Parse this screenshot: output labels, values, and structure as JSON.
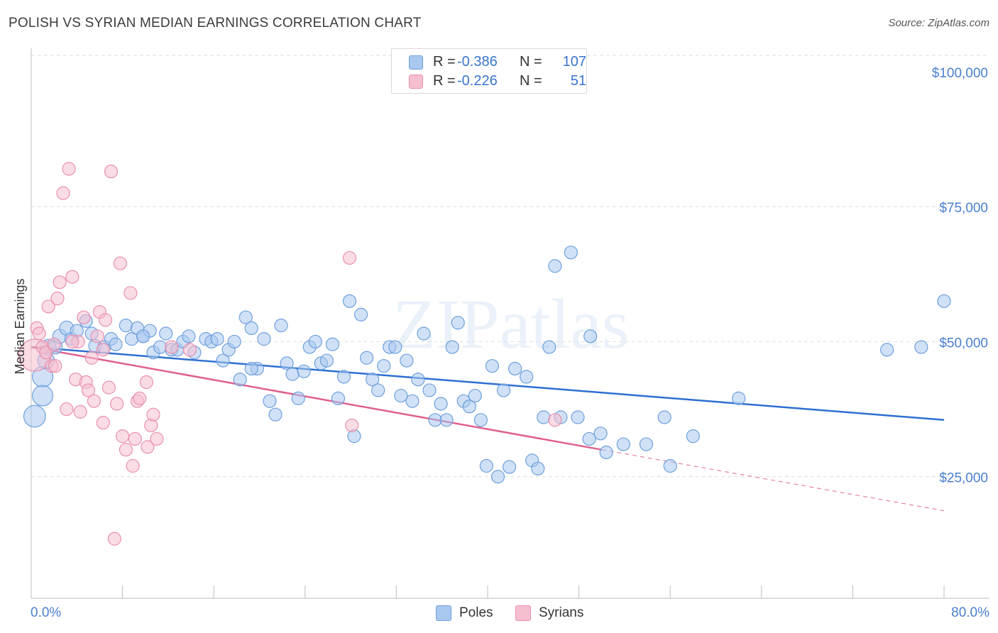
{
  "title": "POLISH VS SYRIAN MEDIAN EARNINGS CORRELATION CHART",
  "source": "Source: ZipAtlas.com",
  "legend": {
    "rows": [
      {
        "r_label": "R =",
        "r_value": "-0.386",
        "n_label": "N =",
        "n_value": "107"
      },
      {
        "r_label": "R =",
        "r_value": "-0.226",
        "n_label": "N =",
        "n_value": "51"
      }
    ]
  },
  "colors": {
    "poles_fill": "#a9c8f0",
    "poles_stroke": "#6e9fdc",
    "poles_line": "#2e6fd1",
    "syrians_fill": "#f6bfd0",
    "syrians_stroke": "#e98fae",
    "syrians_line": "#e0608e",
    "grid": "#dedede",
    "tick_label": "#4a7fcf"
  },
  "chart_data": {
    "type": "scatter",
    "title": "POLISH VS SYRIAN MEDIAN EARNINGS CORRELATION CHART",
    "xlabel": "",
    "ylabel": "Median Earnings",
    "x_tick_labels": [
      "0.0%",
      "80.0%"
    ],
    "y_tick_labels": [
      "$25,000",
      "$50,000",
      "$75,000",
      "$100,000"
    ],
    "y_ticks": [
      25000,
      50000,
      75000,
      100000
    ],
    "xlim": [
      0,
      80
    ],
    "ylim": [
      2500,
      103000
    ],
    "watermark": "ZIPatlas",
    "series": [
      {
        "name": "Poles",
        "r": -0.386,
        "n": 107,
        "trend": {
          "x0": 0,
          "y0": 49000,
          "x1": 80,
          "y1": 35500
        },
        "points": [
          [
            0.3,
            36200,
            1.7
          ],
          [
            1.0,
            43500,
            1.6
          ],
          [
            1.0,
            40000,
            1.6
          ],
          [
            1.3,
            46500,
            1.3
          ],
          [
            1.5,
            49000,
            1.2
          ],
          [
            2.1,
            49000,
            1.1
          ],
          [
            2.5,
            51000,
            1.1
          ],
          [
            3.1,
            52500,
            1.1
          ],
          [
            3.5,
            50500,
            1.0
          ],
          [
            4.0,
            52000,
            1.0
          ],
          [
            4.8,
            53800,
            1.0
          ],
          [
            5.3,
            51500,
            1.0
          ],
          [
            5.6,
            49200,
            1.0
          ],
          [
            6.4,
            49000,
            1.0
          ],
          [
            7.0,
            50500,
            1.0
          ],
          [
            7.4,
            49500,
            1.0
          ],
          [
            8.3,
            53000,
            1.0
          ],
          [
            8.8,
            50500,
            1.0
          ],
          [
            9.3,
            52500,
            1.0
          ],
          [
            9.8,
            51000,
            1.0
          ],
          [
            10.4,
            52000,
            1.0
          ],
          [
            10.7,
            48000,
            1.0
          ],
          [
            11.3,
            49000,
            1.0
          ],
          [
            11.8,
            51500,
            1.0
          ],
          [
            12.3,
            48500,
            1.0
          ],
          [
            12.8,
            48500,
            1.0
          ],
          [
            13.3,
            50000,
            1.0
          ],
          [
            13.8,
            51000,
            1.0
          ],
          [
            14.3,
            48000,
            1.0
          ],
          [
            15.3,
            50500,
            1.0
          ],
          [
            15.8,
            50000,
            1.0
          ],
          [
            16.3,
            50500,
            1.0
          ],
          [
            16.8,
            46500,
            1.0
          ],
          [
            17.3,
            48500,
            1.0
          ],
          [
            17.8,
            50000,
            1.0
          ],
          [
            18.3,
            43000,
            1.0
          ],
          [
            18.8,
            54500,
            1.0
          ],
          [
            19.3,
            52500,
            1.0
          ],
          [
            19.8,
            45000,
            1.0
          ],
          [
            20.4,
            50500,
            1.0
          ],
          [
            20.9,
            39000,
            1.0
          ],
          [
            21.4,
            36500,
            1.0
          ],
          [
            21.9,
            53000,
            1.0
          ],
          [
            22.4,
            46000,
            1.0
          ],
          [
            22.9,
            44000,
            1.0
          ],
          [
            23.4,
            39500,
            1.0
          ],
          [
            23.9,
            44500,
            1.0
          ],
          [
            24.4,
            49000,
            1.0
          ],
          [
            24.9,
            50000,
            1.0
          ],
          [
            25.4,
            46000,
            1.0
          ],
          [
            25.9,
            46500,
            1.0
          ],
          [
            26.4,
            49500,
            1.0
          ],
          [
            26.9,
            39500,
            1.0
          ],
          [
            27.4,
            43500,
            1.0
          ],
          [
            27.9,
            57500,
            1.0
          ],
          [
            28.3,
            32500,
            1.0
          ],
          [
            28.9,
            55000,
            1.0
          ],
          [
            29.4,
            47000,
            1.0
          ],
          [
            29.9,
            43000,
            1.0
          ],
          [
            30.4,
            41000,
            1.0
          ],
          [
            30.9,
            45500,
            1.0
          ],
          [
            31.4,
            49000,
            1.0
          ],
          [
            31.9,
            49000,
            1.0
          ],
          [
            32.4,
            40000,
            1.0
          ],
          [
            32.9,
            46500,
            1.0
          ],
          [
            33.4,
            39000,
            1.0
          ],
          [
            33.9,
            43000,
            1.0
          ],
          [
            34.4,
            51500,
            1.0
          ],
          [
            34.9,
            41000,
            1.0
          ],
          [
            35.4,
            35500,
            1.0
          ],
          [
            35.9,
            38500,
            1.0
          ],
          [
            36.4,
            35500,
            1.0
          ],
          [
            36.9,
            49000,
            1.0
          ],
          [
            37.4,
            53500,
            1.0
          ],
          [
            37.9,
            39000,
            1.0
          ],
          [
            38.4,
            38000,
            1.0
          ],
          [
            38.9,
            40000,
            1.0
          ],
          [
            39.4,
            35500,
            1.0
          ],
          [
            39.9,
            27000,
            1.0
          ],
          [
            40.4,
            45500,
            1.0
          ],
          [
            40.9,
            25000,
            1.0
          ],
          [
            41.4,
            41000,
            1.0
          ],
          [
            41.9,
            26800,
            1.0
          ],
          [
            42.4,
            45000,
            1.0
          ],
          [
            43.4,
            43500,
            1.0
          ],
          [
            43.9,
            28000,
            1.0
          ],
          [
            44.4,
            26500,
            1.0
          ],
          [
            44.9,
            36000,
            1.0
          ],
          [
            45.4,
            49000,
            1.0
          ],
          [
            45.9,
            64000,
            1.0
          ],
          [
            46.4,
            36000,
            1.0
          ],
          [
            47.3,
            66500,
            1.0
          ],
          [
            47.9,
            36000,
            1.0
          ],
          [
            48.9,
            32000,
            1.0
          ],
          [
            49.0,
            51000,
            1.0
          ],
          [
            49.9,
            33000,
            1.0
          ],
          [
            50.4,
            29500,
            1.0
          ],
          [
            51.9,
            31000,
            1.0
          ],
          [
            53.9,
            31000,
            1.0
          ],
          [
            55.5,
            36000,
            1.0
          ],
          [
            56.0,
            27000,
            1.0
          ],
          [
            58.0,
            32500,
            1.0
          ],
          [
            62.0,
            39500,
            1.0
          ],
          [
            75.0,
            48500,
            1.0
          ],
          [
            78.0,
            49000,
            1.0
          ],
          [
            80.0,
            57500,
            1.0
          ],
          [
            9.8,
            51000,
            1.0
          ],
          [
            19.3,
            45000,
            1.0
          ]
        ]
      },
      {
        "name": "Syrians",
        "r": -0.226,
        "n": 51,
        "trend": {
          "x0": 0,
          "y0": 49000,
          "x1": 50,
          "y1": 30000,
          "dash_to_x": 80,
          "dash_to_y": 18700
        },
        "points": [
          [
            0.3,
            47500,
            2.5
          ],
          [
            0.5,
            52500,
            1.0
          ],
          [
            0.7,
            51500,
            1.0
          ],
          [
            1.0,
            49000,
            1.0
          ],
          [
            1.3,
            48000,
            1.0
          ],
          [
            1.5,
            56500,
            1.0
          ],
          [
            1.8,
            45500,
            1.0
          ],
          [
            2.0,
            49500,
            1.0
          ],
          [
            2.3,
            58000,
            1.0
          ],
          [
            2.5,
            61000,
            1.0
          ],
          [
            2.8,
            77500,
            1.0
          ],
          [
            3.1,
            37500,
            1.0
          ],
          [
            3.3,
            82000,
            1.0
          ],
          [
            3.6,
            62000,
            1.0
          ],
          [
            3.9,
            43000,
            1.0
          ],
          [
            4.1,
            50000,
            1.0
          ],
          [
            4.3,
            37000,
            1.0
          ],
          [
            4.6,
            54500,
            1.0
          ],
          [
            4.8,
            42500,
            1.0
          ],
          [
            5.0,
            41000,
            1.0
          ],
          [
            5.3,
            47000,
            1.0
          ],
          [
            5.5,
            39000,
            1.0
          ],
          [
            5.8,
            51000,
            1.0
          ],
          [
            6.0,
            55500,
            1.0
          ],
          [
            6.3,
            35000,
            1.0
          ],
          [
            6.5,
            54000,
            1.0
          ],
          [
            6.8,
            41500,
            1.0
          ],
          [
            7.0,
            81500,
            1.0
          ],
          [
            7.3,
            13500,
            1.0
          ],
          [
            7.5,
            38500,
            1.0
          ],
          [
            7.8,
            64500,
            1.0
          ],
          [
            8.0,
            32500,
            1.0
          ],
          [
            8.3,
            30000,
            1.0
          ],
          [
            8.7,
            59000,
            1.0
          ],
          [
            8.9,
            27000,
            1.0
          ],
          [
            9.1,
            32000,
            1.0
          ],
          [
            9.3,
            39000,
            1.0
          ],
          [
            9.5,
            39500,
            1.0
          ],
          [
            10.1,
            42500,
            1.0
          ],
          [
            10.2,
            30500,
            1.0
          ],
          [
            10.5,
            34500,
            1.0
          ],
          [
            10.7,
            36500,
            1.0
          ],
          [
            11.0,
            32000,
            1.0
          ],
          [
            12.3,
            49000,
            1.0
          ],
          [
            13.9,
            48500,
            1.0
          ],
          [
            27.9,
            65500,
            1.0
          ],
          [
            28.1,
            34500,
            1.0
          ],
          [
            45.9,
            35500,
            1.0
          ],
          [
            6.3,
            48500,
            1.0
          ],
          [
            2.1,
            45500,
            1.0
          ],
          [
            3.6,
            50000,
            1.0
          ]
        ]
      }
    ]
  },
  "axes": {
    "y_label": "Median Earnings"
  },
  "bottom_legend": [
    {
      "label": "Poles"
    },
    {
      "label": "Syrians"
    }
  ]
}
